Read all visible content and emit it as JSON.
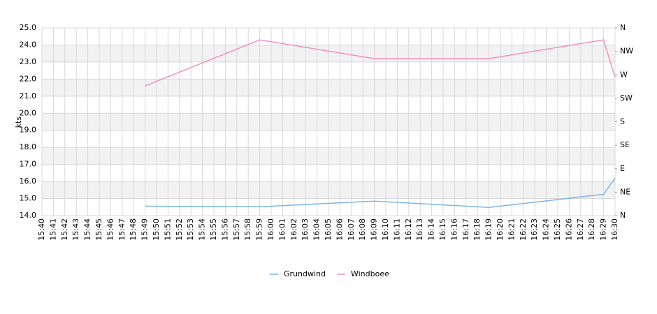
{
  "chart_data": {
    "type": "line",
    "y_label": "kts",
    "categories": [
      "15:40",
      "15:41",
      "15:42",
      "15:43",
      "15:44",
      "15:45",
      "15:46",
      "15:47",
      "15:48",
      "15:49",
      "15:50",
      "15:51",
      "15:52",
      "15:53",
      "15:54",
      "15:55",
      "15:56",
      "15:57",
      "15:58",
      "15:59",
      "16:00",
      "16:01",
      "16:02",
      "16:03",
      "16:04",
      "16:05",
      "16:06",
      "16:07",
      "16:08",
      "16:09",
      "16:10",
      "16:11",
      "16:12",
      "16:13",
      "16:14",
      "16:15",
      "16:16",
      "16:17",
      "16:18",
      "16:19",
      "16:20",
      "16:21",
      "16:22",
      "16:23",
      "16:24",
      "16:25",
      "16:26",
      "16:27",
      "16:28",
      "16:29",
      "16:30"
    ],
    "series": [
      {
        "name": "Grundwind",
        "color": "#7cb5ec",
        "x": [
          "15:49",
          "15:59",
          "16:09",
          "16:19",
          "16:29",
          "16:30"
        ],
        "values": [
          14.55,
          14.52,
          14.85,
          14.48,
          15.25,
          16.2
        ]
      },
      {
        "name": "Windboee",
        "color": "#f28fbf",
        "x": [
          "15:49",
          "15:59",
          "16:09",
          "16:19",
          "16:29",
          "16:30"
        ],
        "values": [
          21.6,
          24.3,
          23.2,
          23.2,
          24.3,
          22.1
        ]
      }
    ],
    "ylim": [
      14,
      25
    ],
    "yticks": [
      {
        "value": 14,
        "label": "14.0"
      },
      {
        "value": 15,
        "label": "15.0"
      },
      {
        "value": 16,
        "label": "16.0"
      },
      {
        "value": 17,
        "label": "17.0"
      },
      {
        "value": 18,
        "label": "18.0"
      },
      {
        "value": 19,
        "label": "19.0"
      },
      {
        "value": 20,
        "label": "20.0"
      },
      {
        "value": 21,
        "label": "21.0"
      },
      {
        "value": 22,
        "label": "22.0"
      },
      {
        "value": 23,
        "label": "23.0"
      },
      {
        "value": 24,
        "label": "24.0"
      },
      {
        "value": 25,
        "label": "25.0"
      }
    ],
    "y2lim": [
      0,
      360
    ],
    "y2ticks": [
      {
        "value": 0,
        "label": "N"
      },
      {
        "value": 45,
        "label": "NE"
      },
      {
        "value": 90,
        "label": "E"
      },
      {
        "value": 135,
        "label": "SE"
      },
      {
        "value": 180,
        "label": "S"
      },
      {
        "value": 225,
        "label": "SW"
      },
      {
        "value": 270,
        "label": "W"
      },
      {
        "value": 315,
        "label": "NW"
      },
      {
        "value": 360,
        "label": "N"
      }
    ],
    "grid": true
  }
}
